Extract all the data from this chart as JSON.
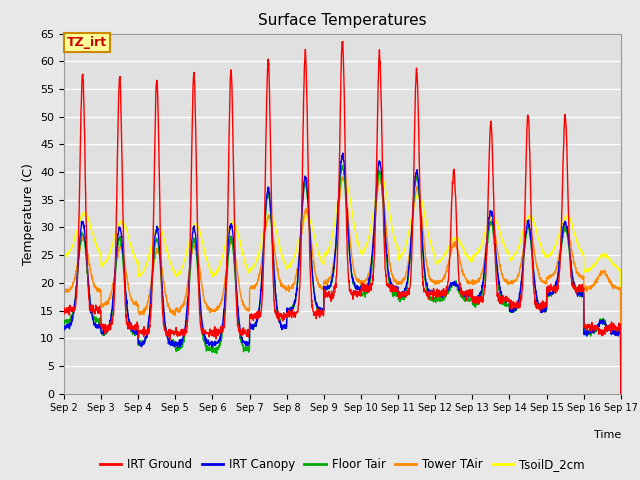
{
  "title": "Surface Temperatures",
  "xlabel": "Time",
  "ylabel": "Temperature (C)",
  "ylim": [
    0,
    65
  ],
  "yticks": [
    0,
    5,
    10,
    15,
    20,
    25,
    30,
    35,
    40,
    45,
    50,
    55,
    60,
    65
  ],
  "xtick_labels": [
    "Sep 2",
    "Sep 3",
    "Sep 4",
    "Sep 5",
    "Sep 6",
    "Sep 7",
    "Sep 8",
    "Sep 9",
    "Sep 10",
    "Sep 11",
    "Sep 12",
    "Sep 13",
    "Sep 14",
    "Sep 15",
    "Sep 16",
    "Sep 17"
  ],
  "series_colors": {
    "IRT Ground": "#ff0000",
    "IRT Canopy": "#0000ee",
    "Floor Tair": "#00aa00",
    "Tower TAir": "#ff8800",
    "TsoilD_2cm": "#ffff00"
  },
  "annotation_text": "TZ_irt",
  "annotation_bg": "#ffff99",
  "annotation_border": "#cc8800",
  "fig_bg": "#e8e8e8",
  "plot_bg": "#e0e0e0",
  "grid_color": "#ffffff",
  "title_fontsize": 11,
  "label_fontsize": 9,
  "tick_fontsize": 8,
  "days": 15,
  "points_per_day": 144,
  "irt_ground_peaks": [
    57.5,
    57.0,
    56.5,
    57.5,
    58.0,
    60.0,
    61.5,
    63.5,
    61.0,
    58.5,
    40.0,
    49.0,
    50.5,
    50.0,
    11.0
  ],
  "irt_ground_nights": [
    15.0,
    12.0,
    11.0,
    11.0,
    11.0,
    14.0,
    14.5,
    18.0,
    19.0,
    18.0,
    18.0,
    17.0,
    16.0,
    19.0,
    12.0
  ],
  "irt_canopy_peaks": [
    31.0,
    30.0,
    30.0,
    30.0,
    30.5,
    37.0,
    39.0,
    43.0,
    42.0,
    40.0,
    20.0,
    33.0,
    31.0,
    31.0,
    13.0
  ],
  "irt_canopy_nights": [
    12.0,
    11.0,
    9.0,
    9.0,
    9.0,
    12.0,
    15.0,
    19.0,
    19.0,
    18.0,
    18.0,
    17.0,
    15.0,
    18.0,
    11.0
  ],
  "floor_tair_peaks": [
    29.0,
    28.0,
    28.0,
    28.0,
    28.0,
    36.0,
    38.0,
    41.0,
    40.0,
    39.0,
    20.0,
    31.0,
    30.0,
    30.0,
    13.0
  ],
  "floor_tair_nights": [
    13.0,
    11.0,
    9.0,
    8.0,
    8.0,
    12.0,
    15.0,
    19.0,
    18.0,
    17.0,
    17.0,
    16.0,
    15.0,
    18.0,
    11.0
  ],
  "tower_tair_peaks": [
    28.0,
    26.5,
    26.0,
    27.0,
    27.5,
    32.0,
    33.0,
    39.0,
    39.0,
    37.0,
    27.0,
    31.0,
    30.0,
    30.0,
    22.0
  ],
  "tower_tair_nights": [
    18.5,
    16.0,
    14.5,
    15.0,
    15.0,
    19.0,
    19.0,
    20.0,
    20.0,
    20.0,
    20.0,
    20.0,
    20.0,
    21.0,
    19.0
  ],
  "tsoild_peaks": [
    32.5,
    31.0,
    30.0,
    30.5,
    31.0,
    32.5,
    32.0,
    39.0,
    39.0,
    36.0,
    28.0,
    32.0,
    32.0,
    32.0,
    25.0
  ],
  "tsoild_nights": [
    24.5,
    23.0,
    21.0,
    21.0,
    21.0,
    22.0,
    22.5,
    24.5,
    25.0,
    24.0,
    23.5,
    24.5,
    24.0,
    24.5,
    22.0
  ]
}
